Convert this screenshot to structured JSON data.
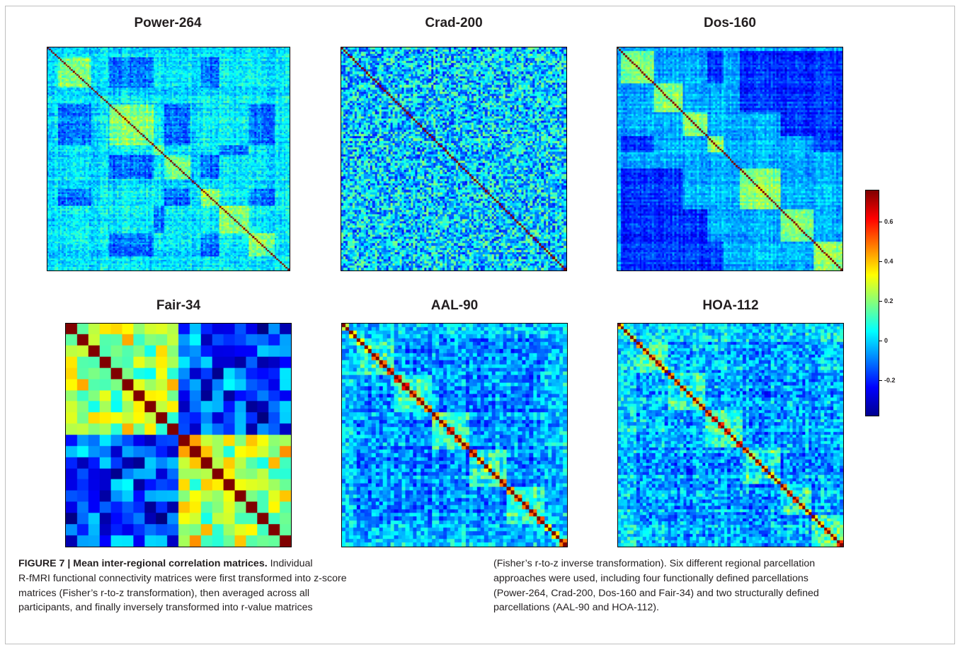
{
  "figure": {
    "panels": [
      {
        "title": "Power-264"
      },
      {
        "title": "Crad-200"
      },
      {
        "title": "Dos-160"
      },
      {
        "title": "Fair-34"
      },
      {
        "title": "AAL-90"
      },
      {
        "title": "HOA-112"
      }
    ],
    "colorbar": {
      "colormap": "jet",
      "range": [
        -0.38,
        0.76
      ],
      "ticks": [
        {
          "value": 0.6,
          "label": "0.6"
        },
        {
          "value": 0.4,
          "label": "0.4"
        },
        {
          "value": 0.2,
          "label": "0.2"
        },
        {
          "value": 0,
          "label": "0"
        },
        {
          "value": -0.2,
          "label": "-0.2"
        }
      ]
    }
  },
  "caption": {
    "label": "FIGURE 7 | Mean inter-regional correlation matrices.",
    "col1_lines": [
      "Individual",
      "R-fMRI functional connectivity matrices were first transformed into z-score",
      "matrices (Fisher’s r-to-z transformation), then averaged across all",
      "participants, and finally inversely transformed into r-value matrices"
    ],
    "col2_lines": [
      "(Fisher’s r-to-z inverse transformation). Six different regional parcellation",
      "approaches were used, including four functionally defined parcellations",
      "(Power-264, Crad-200, Dos-160 and Fair-34) and two structurally defined",
      "parcellations (AAL-90 and HOA-112)."
    ]
  }
}
